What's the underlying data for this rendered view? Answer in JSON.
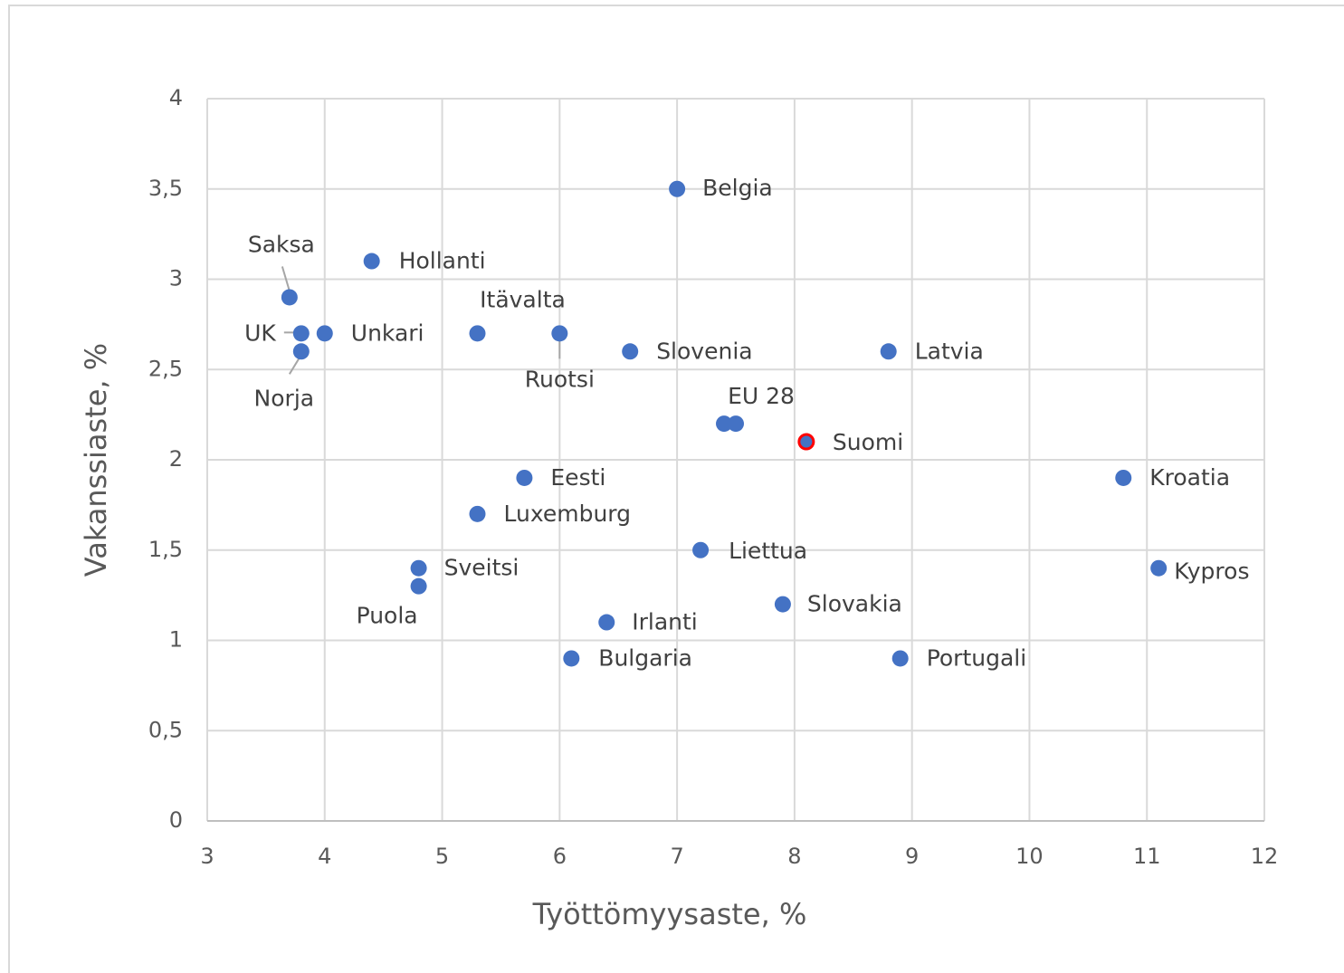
{
  "chart_data": {
    "type": "scatter",
    "x_label": "Työttömyysaste, %",
    "y_label": "Vakanssiaste, %",
    "labels": [
      "Belgia",
      "Hollanti",
      "Saksa",
      "UK",
      "Unkari",
      "Norja",
      "Itävalta",
      "Ruotsi",
      "Slovenia",
      "Latvia",
      "EU 28",
      null,
      "Suomi",
      "Kroatia",
      "Eesti",
      "Luxemburg",
      "Liettua",
      "Sveitsi",
      "Puola",
      "Kypros",
      "Slovakia",
      "Irlanti",
      "Bulgaria",
      "Portugali"
    ],
    "x": [
      7.0,
      4.4,
      3.7,
      3.8,
      4.0,
      3.8,
      5.3,
      6.0,
      6.6,
      8.8,
      7.4,
      7.5,
      8.1,
      10.8,
      5.7,
      5.3,
      7.2,
      4.8,
      4.8,
      11.1,
      7.9,
      6.4,
      6.1,
      8.9
    ],
    "y": [
      3.5,
      3.1,
      2.9,
      2.7,
      2.7,
      2.6,
      2.7,
      2.7,
      2.6,
      2.6,
      2.2,
      2.2,
      2.1,
      1.9,
      1.9,
      1.7,
      1.5,
      1.4,
      1.3,
      1.4,
      1.2,
      1.1,
      0.9,
      0.9
    ],
    "color": "#4472c4",
    "edge_colors": [
      null,
      null,
      null,
      null,
      null,
      null,
      null,
      null,
      null,
      null,
      null,
      null,
      "#ff0000",
      null,
      null,
      null,
      null,
      null,
      null,
      null,
      null,
      null,
      null,
      null
    ],
    "xlim": [
      3,
      12
    ],
    "ylim": [
      0,
      4
    ],
    "xticks": [
      3,
      4,
      5,
      6,
      7,
      8,
      9,
      10,
      11,
      12
    ],
    "yticks": [
      0,
      {
        "value": 0.5,
        "label": "0,5"
      },
      1,
      {
        "value": 1.5,
        "label": "1,5"
      },
      2,
      {
        "value": 2.5,
        "label": "2,5"
      },
      3,
      {
        "value": 3.5,
        "label": "3,5"
      },
      4
    ],
    "grid": true
  }
}
